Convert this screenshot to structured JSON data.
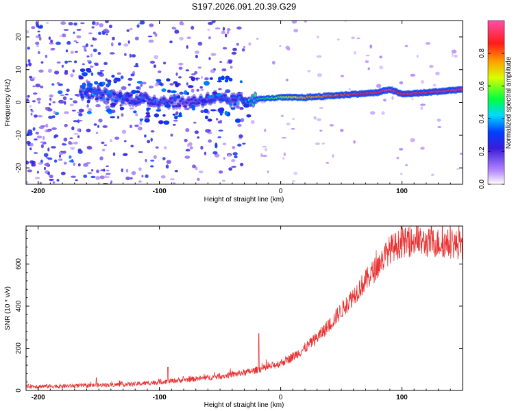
{
  "title": "S197.2026.091.20.39.G29",
  "chart_data": [
    {
      "type": "heatmap",
      "xlabel": "Height of straight line (km)",
      "ylabel": "Frequency (Hz)",
      "xlim": [
        -210,
        150
      ],
      "ylim": [
        -25,
        25
      ],
      "xticks": [
        "-200",
        "-100",
        "0",
        "100"
      ],
      "xtick_values": [
        -200,
        -100,
        0,
        100
      ],
      "yticks": [
        "-20",
        "-10",
        "0",
        "10",
        "20"
      ],
      "ytick_values": [
        -20,
        -10,
        0,
        10,
        20
      ],
      "colorbar": {
        "label": "Normalized spectral amplitude",
        "ticks": [
          "0.0",
          "0.2",
          "0.4",
          "0.6",
          "0.8"
        ],
        "tick_values": [
          0.0,
          0.2,
          0.4,
          0.6,
          0.8
        ],
        "range": [
          0,
          1
        ]
      },
      "ridge": {
        "description": "dominant frequency line",
        "height_km": [
          -160,
          -140,
          -120,
          -100,
          -80,
          -60,
          -40,
          -20,
          0,
          20,
          40,
          60,
          80,
          90,
          100,
          120,
          150
        ],
        "freq_hz": [
          3,
          2,
          1,
          0.5,
          0,
          1,
          0.5,
          1,
          1.5,
          1.5,
          2,
          2.5,
          3,
          4,
          2.5,
          3,
          4
        ],
        "amplitude": [
          0.35,
          0.3,
          0.3,
          0.3,
          0.25,
          0.3,
          0.3,
          0.45,
          0.6,
          0.75,
          0.8,
          0.85,
          0.9,
          0.95,
          0.88,
          0.9,
          0.92
        ]
      }
    },
    {
      "type": "line",
      "xlabel": "Height of straight line (km)",
      "ylabel": "SNR (10 * v/v)",
      "xlim": [
        -210,
        150
      ],
      "ylim": [
        0,
        780
      ],
      "xticks": [
        "-200",
        "-100",
        "0",
        "100"
      ],
      "xtick_values": [
        -200,
        -100,
        0,
        100
      ],
      "yticks": [
        "0",
        "200",
        "400",
        "600"
      ],
      "ytick_values": [
        0,
        200,
        400,
        600
      ],
      "series": [
        {
          "name": "SNR",
          "color": "#e83030",
          "x": [
            -210,
            -180,
            -150,
            -120,
            -100,
            -80,
            -60,
            -40,
            -25,
            -10,
            0,
            10,
            20,
            30,
            40,
            50,
            60,
            70,
            80,
            90,
            100,
            110,
            120,
            130,
            150
          ],
          "y": [
            20,
            20,
            25,
            30,
            40,
            50,
            60,
            75,
            90,
            110,
            130,
            160,
            200,
            250,
            310,
            380,
            450,
            520,
            590,
            670,
            700,
            705,
            700,
            700,
            690
          ],
          "spikes": [
            {
              "x": -152,
              "y": 60
            },
            {
              "x": -93,
              "y": 110
            },
            {
              "x": -18,
              "y": 270
            },
            {
              "x": 112,
              "y": 780
            }
          ]
        }
      ]
    }
  ]
}
